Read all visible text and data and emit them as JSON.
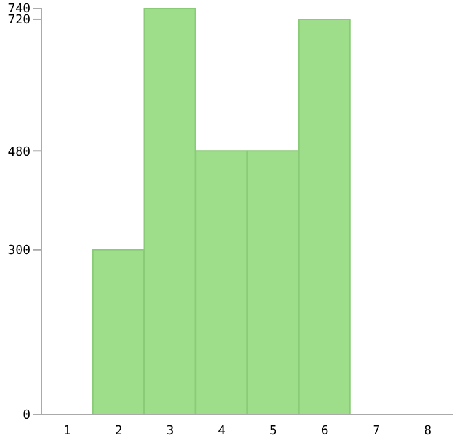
{
  "chart_data": {
    "type": "bar",
    "categories": [
      "1",
      "2",
      "3",
      "4",
      "5",
      "6",
      "7",
      "8"
    ],
    "values": [
      0,
      300,
      740,
      480,
      480,
      720,
      0,
      0
    ],
    "color": "#9ede8a",
    "ylim": [
      0,
      740
    ],
    "yticks": [
      0,
      300,
      480,
      720,
      740
    ]
  }
}
